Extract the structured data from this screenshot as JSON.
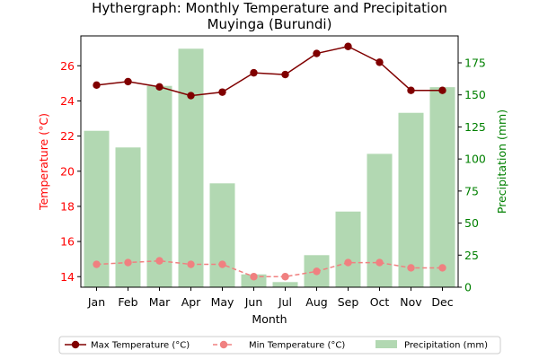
{
  "chart_data": {
    "type": "bar+line",
    "title": "Hythergraph: Monthly Temperature and Precipitation",
    "subtitle": "Muyinga (Burundi)",
    "xlabel": "Month",
    "ylabel_left": "Temperature (°C)",
    "ylabel_right": "Precipitation (mm)",
    "categories": [
      "Jan",
      "Feb",
      "Mar",
      "Apr",
      "May",
      "Jun",
      "Jul",
      "Aug",
      "Sep",
      "Oct",
      "Nov",
      "Dec"
    ],
    "ylim_left": [
      13.4,
      27.7
    ],
    "ylim_right": [
      0,
      196
    ],
    "yticks_left": [
      14,
      16,
      18,
      20,
      22,
      24,
      26
    ],
    "yticks_right": [
      0,
      25,
      50,
      75,
      100,
      125,
      150,
      175
    ],
    "series": [
      {
        "name": "Max Temperature (°C)",
        "kind": "line",
        "axis": "left",
        "color": "#800000",
        "style": "solid",
        "values": [
          24.9,
          25.1,
          24.8,
          24.3,
          24.5,
          25.6,
          25.5,
          26.7,
          27.1,
          26.2,
          24.6,
          24.6
        ]
      },
      {
        "name": "Min Temperature (°C)",
        "kind": "line",
        "axis": "left",
        "color": "#f08080",
        "style": "dashed",
        "values": [
          14.7,
          14.8,
          14.9,
          14.7,
          14.7,
          14.0,
          14.0,
          14.3,
          14.8,
          14.8,
          14.5,
          14.5
        ]
      },
      {
        "name": "Precipitation (mm)",
        "kind": "bar",
        "axis": "right",
        "color": "#b2d8b2",
        "values": [
          122,
          109,
          157,
          186,
          81,
          10,
          4,
          25,
          59,
          104,
          136,
          156
        ]
      }
    ],
    "legend_position": "bottom",
    "left_axis_color": "#ff0000",
    "right_axis_color": "#008000",
    "grid": false
  }
}
